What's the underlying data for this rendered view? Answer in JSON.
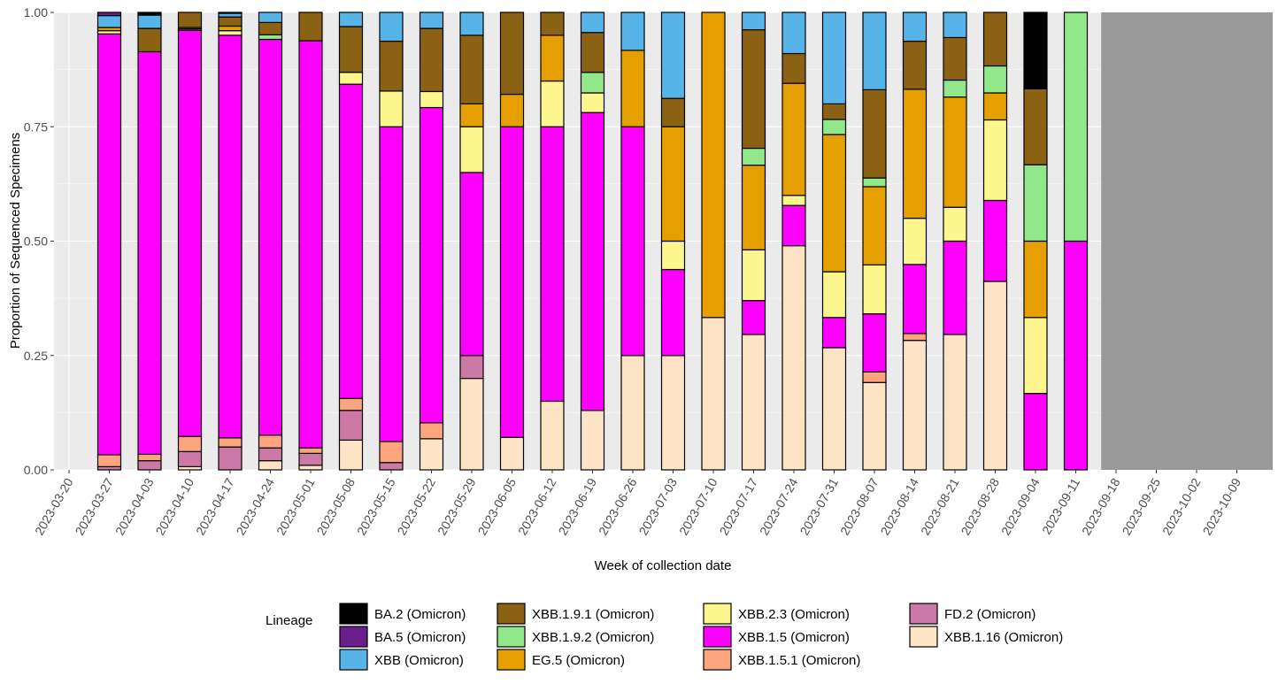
{
  "chart_data": {
    "type": "bar",
    "stacked": true,
    "title": "",
    "xlabel": "Week of collection date",
    "ylabel": "Proportion of Sequenced Specimens",
    "ylim": [
      0,
      1
    ],
    "y_ticks": [
      "0.00",
      "0.25",
      "0.50",
      "0.75",
      "1.00"
    ],
    "y_tick_values": [
      0,
      0.25,
      0.5,
      0.75,
      1
    ],
    "grid": true,
    "legend_title": "Lineage",
    "legend_position": "bottom",
    "shaded_region": {
      "from": "2023-09-18",
      "to": "2023-10-09",
      "color": "#999999"
    },
    "categories": [
      "2023-03-20",
      "2023-03-27",
      "2023-04-03",
      "2023-04-10",
      "2023-04-17",
      "2023-04-24",
      "2023-05-01",
      "2023-05-08",
      "2023-05-15",
      "2023-05-22",
      "2023-05-29",
      "2023-06-05",
      "2023-06-12",
      "2023-06-19",
      "2023-06-26",
      "2023-07-03",
      "2023-07-10",
      "2023-07-17",
      "2023-07-24",
      "2023-07-31",
      "2023-08-07",
      "2023-08-14",
      "2023-08-21",
      "2023-08-28",
      "2023-09-04",
      "2023-09-11",
      "2023-09-18",
      "2023-09-25",
      "2023-10-02",
      "2023-10-09"
    ],
    "series": [
      {
        "name": "XBB.1.16 (Omicron)",
        "color": "#FDE4C5",
        "values": [
          null,
          0,
          0,
          0.007,
          0,
          0.02,
          0.01,
          0.065,
          0,
          0.068,
          0.2,
          0.071,
          0.15,
          0.13,
          0.25,
          0.25,
          0.333,
          0.296,
          0.49,
          0.267,
          0.191,
          0.283,
          0.296,
          0.412,
          0,
          0,
          null,
          null,
          null,
          null
        ]
      },
      {
        "name": "FD.2 (Omicron)",
        "color": "#CC79A7",
        "values": [
          null,
          0.007,
          0.02,
          0.033,
          0.05,
          0.028,
          0.026,
          0.065,
          0.016,
          0,
          0.05,
          0,
          0,
          0,
          0,
          0,
          0,
          0,
          0,
          0,
          0,
          0,
          0,
          0,
          0,
          0,
          null,
          null,
          null,
          null
        ]
      },
      {
        "name": "XBB.1.5.1 (Omicron)",
        "color": "#FCA47E",
        "values": [
          null,
          0.026,
          0.014,
          0.033,
          0.02,
          0.028,
          0.012,
          0.026,
          0.046,
          0.035,
          0,
          0,
          0,
          0,
          0,
          0,
          0,
          0,
          0,
          0,
          0.023,
          0.015,
          0,
          0,
          0,
          0,
          null,
          null,
          null,
          null
        ]
      },
      {
        "name": "XBB.1.5 (Omicron)",
        "color": "#FF00FF",
        "values": [
          null,
          0.92,
          0.88,
          0.888,
          0.88,
          0.865,
          0.89,
          0.687,
          0.688,
          0.689,
          0.4,
          0.679,
          0.6,
          0.651,
          0.5,
          0.188,
          0,
          0.074,
          0.088,
          0.066,
          0.127,
          0.151,
          0.204,
          0.177,
          0.167,
          0.5,
          null,
          null,
          null,
          null
        ]
      },
      {
        "name": "XBB.2.3 (Omicron)",
        "color": "#FDF58E",
        "values": [
          null,
          0.007,
          0,
          0.003,
          0.01,
          0,
          0,
          0.026,
          0.078,
          0.035,
          0.1,
          0,
          0.1,
          0.043,
          0,
          0.062,
          0,
          0.111,
          0.022,
          0.1,
          0.107,
          0.101,
          0.074,
          0.176,
          0.166,
          0,
          null,
          null,
          null,
          null
        ]
      },
      {
        "name": "EG.5 (Omicron)",
        "color": "#E69F00",
        "values": [
          null,
          0.007,
          0,
          0.003,
          0.01,
          0,
          0,
          0,
          0,
          0,
          0.05,
          0.071,
          0.1,
          0,
          0.167,
          0.25,
          0.667,
          0.185,
          0.245,
          0.3,
          0.171,
          0.282,
          0.241,
          0.059,
          0.167,
          0,
          null,
          null,
          null,
          null
        ]
      },
      {
        "name": "XBB.1.9.2 (Omicron)",
        "color": "#90E88A",
        "values": [
          null,
          0,
          0,
          0,
          0,
          0.01,
          0,
          0,
          0,
          0,
          0,
          0,
          0,
          0.045,
          0,
          0,
          0,
          0.037,
          0,
          0.033,
          0.019,
          0,
          0.037,
          0.059,
          0.167,
          0.5,
          null,
          null,
          null,
          null
        ]
      },
      {
        "name": "XBB.1.9.1 (Omicron)",
        "color": "#8B6214",
        "values": [
          null,
          0,
          0.051,
          0.033,
          0.02,
          0.027,
          0.062,
          0.1,
          0.109,
          0.138,
          0.15,
          0.179,
          0.05,
          0.087,
          0,
          0.062,
          0,
          0.259,
          0.065,
          0.034,
          0.193,
          0.105,
          0.093,
          0.117,
          0.166,
          0,
          null,
          null,
          null,
          null
        ]
      },
      {
        "name": "XBB (Omicron)",
        "color": "#56B4E9",
        "values": [
          null,
          0.026,
          0.029,
          0,
          0.008,
          0.022,
          0,
          0.031,
          0.063,
          0.035,
          0.05,
          0,
          0,
          0.044,
          0.083,
          0.188,
          0,
          0.038,
          0.09,
          0.2,
          0.169,
          0.063,
          0.055,
          0,
          0,
          0,
          null,
          null,
          null,
          null
        ]
      },
      {
        "name": "BA.5 (Omicron)",
        "color": "#6A1F8C",
        "values": [
          null,
          0.007,
          0,
          0,
          0,
          0,
          0,
          0,
          0,
          0,
          0,
          0,
          0,
          0,
          0,
          0,
          0,
          0,
          0,
          0,
          0,
          0,
          0,
          0,
          0,
          0,
          null,
          null,
          null,
          null
        ]
      },
      {
        "name": "BA.2 (Omicron)",
        "color": "#000000",
        "values": [
          null,
          0,
          0.006,
          0,
          0.002,
          0,
          0,
          0,
          0,
          0,
          0,
          0,
          0,
          0,
          0,
          0,
          0,
          0,
          0,
          0,
          0,
          0,
          0,
          0,
          0.167,
          0,
          null,
          null,
          null,
          null
        ]
      }
    ],
    "legend_order": [
      "BA.2 (Omicron)",
      "BA.5 (Omicron)",
      "XBB (Omicron)",
      "XBB.1.9.1 (Omicron)",
      "XBB.1.9.2 (Omicron)",
      "EG.5 (Omicron)",
      "XBB.2.3 (Omicron)",
      "XBB.1.5 (Omicron)",
      "XBB.1.5.1 (Omicron)",
      "FD.2 (Omicron)",
      "XBB.1.16 (Omicron)"
    ]
  },
  "colors": {
    "panel_background": "#EBEBEB",
    "gridline": "#FFFFFF",
    "shaded_region": "#999999"
  }
}
